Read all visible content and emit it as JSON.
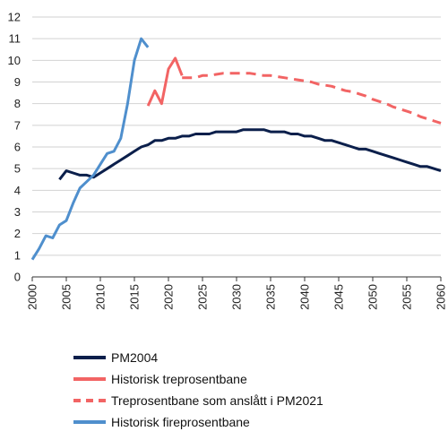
{
  "chart_data": {
    "type": "line",
    "title": "",
    "xlabel": "",
    "ylabel": "",
    "xlim": [
      2000,
      2060
    ],
    "ylim": [
      0,
      12
    ],
    "x_ticks": [
      "2000",
      "2005",
      "2010",
      "2015",
      "2020",
      "2025",
      "2030",
      "2035",
      "2040",
      "2045",
      "2050",
      "2055",
      "2060"
    ],
    "y_ticks": [
      "0",
      "1",
      "2",
      "3",
      "4",
      "5",
      "6",
      "7",
      "8",
      "9",
      "10",
      "11",
      "12"
    ],
    "grid": "horizontal",
    "legend_position": "bottom",
    "series": [
      {
        "name": "PM2004",
        "color": "#0b1f4b",
        "dash": "solid",
        "x": [
          2004,
          2005,
          2006,
          2007,
          2008,
          2009,
          2010,
          2011,
          2012,
          2013,
          2014,
          2015,
          2016,
          2017,
          2018,
          2019,
          2020,
          2021,
          2022,
          2023,
          2024,
          2025,
          2026,
          2027,
          2028,
          2029,
          2030,
          2031,
          2032,
          2033,
          2034,
          2035,
          2036,
          2037,
          2038,
          2039,
          2040,
          2041,
          2042,
          2043,
          2044,
          2045,
          2046,
          2047,
          2048,
          2049,
          2050,
          2051,
          2052,
          2053,
          2054,
          2055,
          2056,
          2057,
          2058,
          2059,
          2060
        ],
        "y": [
          4.5,
          4.9,
          4.8,
          4.7,
          4.7,
          4.6,
          4.8,
          5.0,
          5.2,
          5.4,
          5.6,
          5.8,
          6.0,
          6.1,
          6.3,
          6.3,
          6.4,
          6.4,
          6.5,
          6.5,
          6.6,
          6.6,
          6.6,
          6.7,
          6.7,
          6.7,
          6.7,
          6.8,
          6.8,
          6.8,
          6.8,
          6.7,
          6.7,
          6.7,
          6.6,
          6.6,
          6.5,
          6.5,
          6.4,
          6.3,
          6.3,
          6.2,
          6.1,
          6.0,
          5.9,
          5.9,
          5.8,
          5.7,
          5.6,
          5.5,
          5.4,
          5.3,
          5.2,
          5.1,
          5.1,
          5.0,
          4.9
        ]
      },
      {
        "name": "Historisk treprosentbane",
        "color": "#f26464",
        "dash": "solid",
        "x": [
          2017,
          2018,
          2019,
          2020,
          2021,
          2022
        ],
        "y": [
          7.9,
          8.6,
          8.0,
          9.6,
          10.1,
          9.3
        ]
      },
      {
        "name": "Treprosentbane som anslått i PM2021",
        "color": "#f26464",
        "dash": "dashed",
        "x": [
          2022,
          2023,
          2024,
          2025,
          2026,
          2027,
          2028,
          2029,
          2030,
          2031,
          2032,
          2033,
          2034,
          2035,
          2036,
          2037,
          2038,
          2039,
          2040,
          2041,
          2042,
          2043,
          2044,
          2045,
          2046,
          2047,
          2048,
          2049,
          2050,
          2051,
          2052,
          2053,
          2054,
          2055,
          2056,
          2057,
          2058,
          2059,
          2060
        ],
        "y": [
          9.2,
          9.2,
          9.2,
          9.3,
          9.3,
          9.35,
          9.4,
          9.4,
          9.4,
          9.4,
          9.4,
          9.35,
          9.3,
          9.3,
          9.25,
          9.2,
          9.15,
          9.1,
          9.05,
          9.0,
          8.9,
          8.85,
          8.8,
          8.7,
          8.6,
          8.55,
          8.45,
          8.35,
          8.2,
          8.1,
          8.0,
          7.85,
          7.75,
          7.65,
          7.55,
          7.4,
          7.3,
          7.2,
          7.1
        ]
      },
      {
        "name": "Historisk fireprosentbane",
        "color": "#4f8fcd",
        "dash": "solid",
        "x": [
          2000,
          2001,
          2002,
          2003,
          2004,
          2005,
          2006,
          2007,
          2008,
          2009,
          2010,
          2011,
          2012,
          2013,
          2014,
          2015,
          2016,
          2017
        ],
        "y": [
          0.8,
          1.3,
          1.9,
          1.8,
          2.4,
          2.6,
          3.4,
          4.1,
          4.4,
          4.7,
          5.2,
          5.7,
          5.8,
          6.4,
          8.0,
          10.0,
          11.0,
          10.6
        ]
      }
    ]
  }
}
